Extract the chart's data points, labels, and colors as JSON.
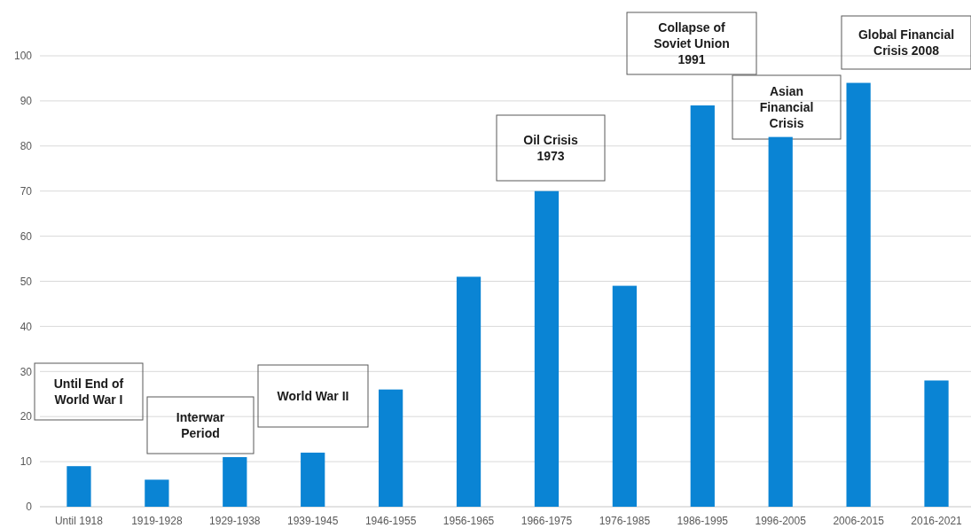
{
  "chart_data": {
    "type": "bar",
    "categories": [
      "Until 1918",
      "1919-1928",
      "1929-1938",
      "1939-1945",
      "1946-1955",
      "1956-1965",
      "1966-1975",
      "1976-1985",
      "1986-1995",
      "1996-2005",
      "2006-2015",
      "2016-2021"
    ],
    "values": [
      9,
      6,
      11,
      12,
      26,
      51,
      70,
      49,
      89,
      82,
      94,
      28
    ],
    "color": "#0a84d4",
    "ylim": [
      0,
      100
    ],
    "yticks": [
      0,
      10,
      20,
      30,
      40,
      50,
      60,
      70,
      80,
      90,
      100
    ],
    "grid": "y",
    "annotations": [
      "Until End of\nWorld War I",
      "Interwar\nPeriod",
      "World War II",
      "Oil Crisis\n1973",
      "Collapse of\nSoviet Union\n1991",
      "Asian\nFinancial\nCrisis",
      "Global Financial\nCrisis 2008"
    ]
  }
}
